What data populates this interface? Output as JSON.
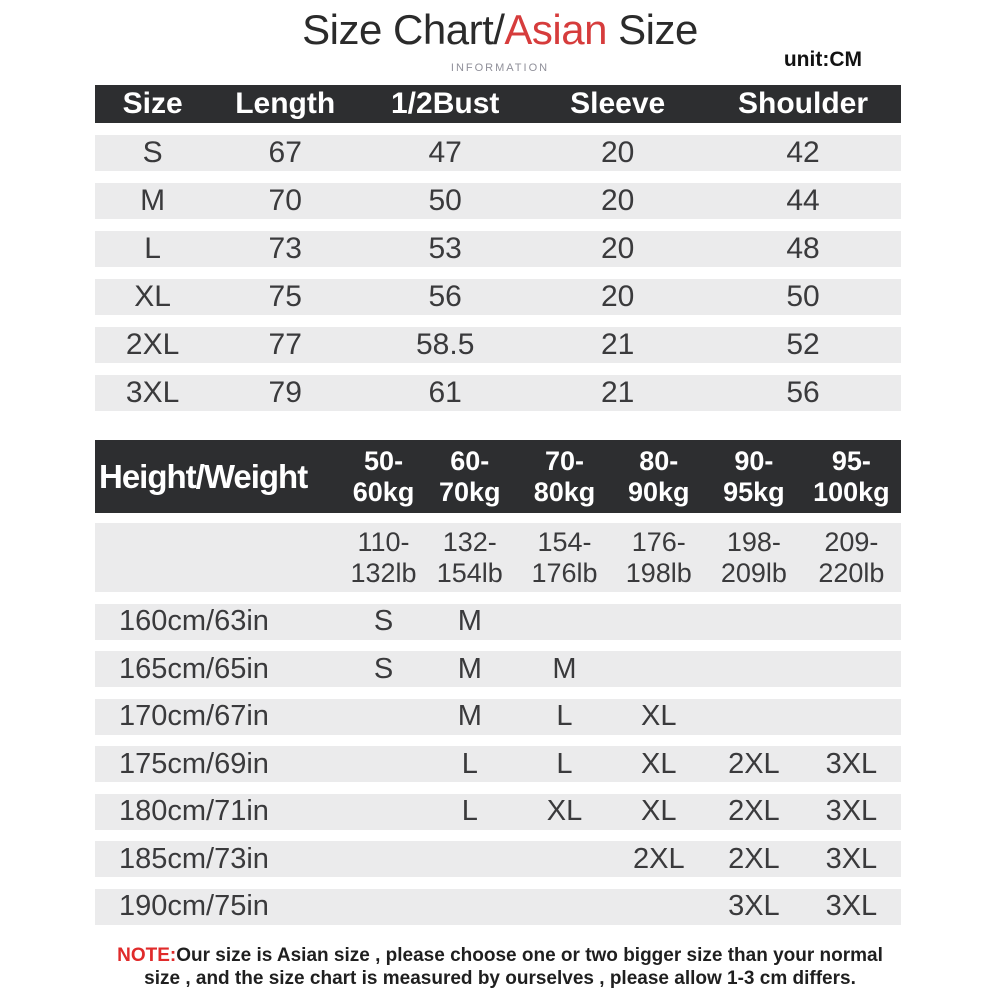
{
  "title": {
    "part1": "Size Chart/",
    "highlight": "Asian",
    "part2": " Size"
  },
  "subtitle": "INFORMATION",
  "unit_label": "unit:CM",
  "colors": {
    "accent_red": "#d63c3c",
    "note_red": "#e02b2b",
    "header_bg": "#2d2e30",
    "row_bg": "#ebebec",
    "title_text": "#2b2b2b",
    "body_text": "#3a3a3c",
    "info_gray": "#90909a"
  },
  "chart_data": [
    {
      "type": "table",
      "title": "Size Chart/Asian Size",
      "unit": "CM",
      "columns": [
        "Size",
        "Length",
        "1/2Bust",
        "Sleeve",
        "Shoulder"
      ],
      "rows": [
        [
          "S",
          "67",
          "47",
          "20",
          "42"
        ],
        [
          "M",
          "70",
          "50",
          "20",
          "44"
        ],
        [
          "L",
          "73",
          "53",
          "20",
          "48"
        ],
        [
          "XL",
          "75",
          "56",
          "20",
          "50"
        ],
        [
          "2XL",
          "77",
          "58.5",
          "21",
          "52"
        ],
        [
          "3XL",
          "79",
          "61",
          "21",
          "56"
        ]
      ]
    },
    {
      "type": "table",
      "corner_label": "Height/Weight",
      "weight_columns_kg": [
        [
          "50-",
          "60kg"
        ],
        [
          "60-",
          "70kg"
        ],
        [
          "70-",
          "80kg"
        ],
        [
          "80-",
          "90kg"
        ],
        [
          "90-",
          "95kg"
        ],
        [
          "95-",
          "100kg"
        ]
      ],
      "weight_columns_lb": [
        [
          "110-",
          "132lb"
        ],
        [
          "132-",
          "154lb"
        ],
        [
          "154-",
          "176lb"
        ],
        [
          "176-",
          "198lb"
        ],
        [
          "198-",
          "209lb"
        ],
        [
          "209-",
          "220lb"
        ]
      ],
      "rows": [
        {
          "height": "160cm/63in",
          "sizes": [
            "S",
            "M",
            "",
            "",
            "",
            ""
          ]
        },
        {
          "height": "165cm/65in",
          "sizes": [
            "S",
            "M",
            "M",
            "",
            "",
            ""
          ]
        },
        {
          "height": "170cm/67in",
          "sizes": [
            "",
            "M",
            "L",
            "XL",
            "",
            ""
          ]
        },
        {
          "height": "175cm/69in",
          "sizes": [
            "",
            "L",
            "L",
            "XL",
            "2XL",
            "3XL"
          ]
        },
        {
          "height": "180cm/71in",
          "sizes": [
            "",
            "L",
            "XL",
            "XL",
            "2XL",
            "3XL"
          ]
        },
        {
          "height": "185cm/73in",
          "sizes": [
            "",
            "",
            "",
            "2XL",
            "2XL",
            "3XL"
          ]
        },
        {
          "height": "190cm/75in",
          "sizes": [
            "",
            "",
            "",
            "",
            "3XL",
            "3XL"
          ]
        }
      ]
    }
  ],
  "note": {
    "label": "NOTE:",
    "line1": "Our size is Asian size , please choose one or two bigger size than your normal",
    "line2": "size , and the size chart is measured by ourselves , please allow 1-3 cm differs."
  }
}
